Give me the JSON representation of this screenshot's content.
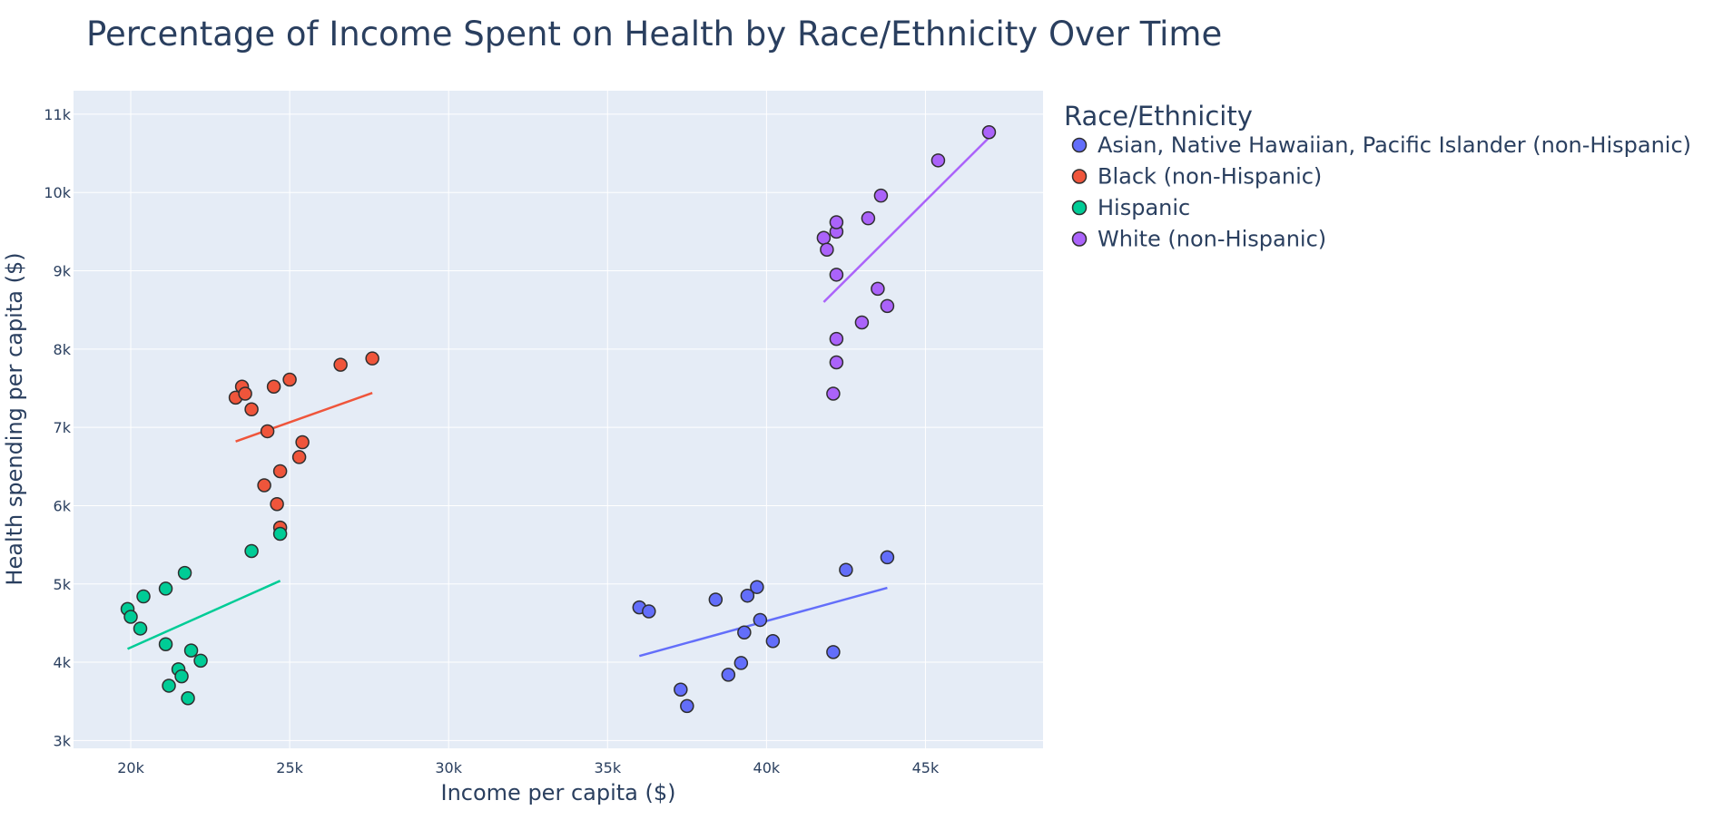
{
  "colors": {
    "plot_bg": "#E5ECF6",
    "grid": "#ffffff",
    "text": "#2a3f5f",
    "marker_outline": "#2f2f2f"
  },
  "chart_data": {
    "type": "scatter",
    "title": "Percentage of Income Spent on Health by Race/Ethnicity Over Time",
    "xlabel": "Income per capita ($)",
    "ylabel": "Health spending per capita ($)",
    "xlim": [
      18200,
      48700
    ],
    "ylim": [
      2900,
      11300
    ],
    "xticks": [
      20000,
      25000,
      30000,
      35000,
      40000,
      45000
    ],
    "xtick_labels": [
      "20k",
      "25k",
      "30k",
      "35k",
      "40k",
      "45k"
    ],
    "yticks": [
      3000,
      4000,
      5000,
      6000,
      7000,
      8000,
      9000,
      10000,
      11000
    ],
    "ytick_labels": [
      "3k",
      "4k",
      "5k",
      "6k",
      "7k",
      "8k",
      "9k",
      "10k",
      "11k"
    ],
    "grid": true,
    "legend_title": "Race/Ethnicity",
    "legend_position": "right",
    "series": [
      {
        "name": "Asian, Native Hawaiian, Pacific Islander (non-Hispanic)",
        "color": "#636EFA",
        "x": [
          36000,
          36300,
          37300,
          37500,
          38400,
          38800,
          39200,
          39300,
          39400,
          39700,
          39800,
          40200,
          42100,
          42500,
          43800
        ],
        "y": [
          4700,
          4650,
          3650,
          3440,
          4800,
          3840,
          3990,
          4380,
          4850,
          4960,
          4540,
          4270,
          4130,
          5180,
          5340
        ],
        "trend": {
          "x": [
            36000,
            43800
          ],
          "y": [
            4080,
            4950
          ]
        }
      },
      {
        "name": "Black (non-Hispanic)",
        "color": "#EF553B",
        "x": [
          23300,
          23500,
          23600,
          23800,
          24200,
          24300,
          24500,
          24600,
          24700,
          24700,
          25000,
          25300,
          25400,
          26600,
          27600
        ],
        "y": [
          7380,
          7520,
          7430,
          7230,
          6260,
          6950,
          7520,
          6020,
          5720,
          6440,
          7610,
          6620,
          6810,
          7800,
          7880
        ],
        "trend": {
          "x": [
            23300,
            27600
          ],
          "y": [
            6820,
            7440
          ]
        }
      },
      {
        "name": "Hispanic",
        "color": "#00CC96",
        "x": [
          19900,
          20000,
          20300,
          20400,
          21100,
          21100,
          21200,
          21500,
          21600,
          21700,
          21800,
          21900,
          22200,
          23800,
          24700
        ],
        "y": [
          4680,
          4580,
          4430,
          4840,
          4230,
          4940,
          3700,
          3910,
          3820,
          5140,
          3540,
          4150,
          4020,
          5420,
          5640
        ],
        "trend": {
          "x": [
            19900,
            24700
          ],
          "y": [
            4170,
            5040
          ]
        }
      },
      {
        "name": "White (non-Hispanic)",
        "color": "#AB63FA",
        "x": [
          41800,
          41900,
          42100,
          42200,
          42200,
          42200,
          42200,
          42200,
          43000,
          43200,
          43500,
          43600,
          43800,
          45400,
          47000
        ],
        "y": [
          9420,
          9270,
          7430,
          8130,
          9500,
          9620,
          8950,
          7830,
          8340,
          9670,
          8770,
          9960,
          8550,
          10410,
          10770
        ],
        "trend": {
          "x": [
            41800,
            47000
          ],
          "y": [
            8600,
            10700
          ]
        }
      }
    ]
  }
}
